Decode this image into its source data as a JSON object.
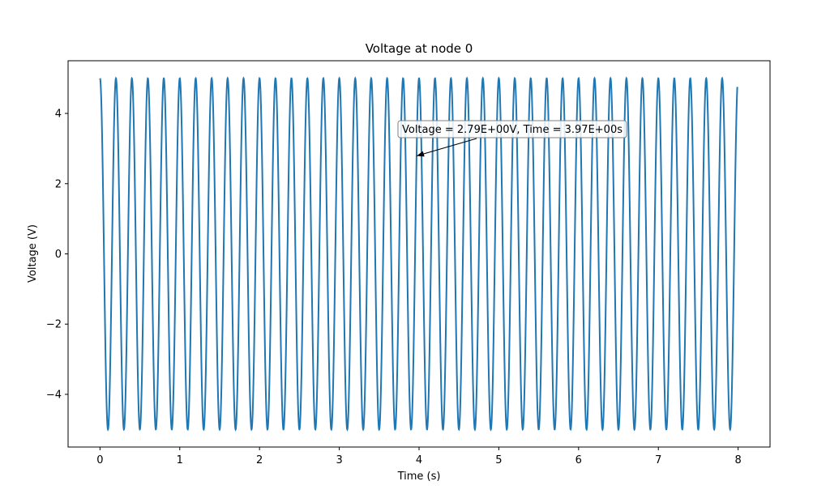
{
  "chart_data": {
    "type": "line",
    "title": "Voltage at node 0",
    "xlabel": "Time (s)",
    "ylabel": "Voltage (V)",
    "xlim": [
      -0.4,
      8.4
    ],
    "ylim": [
      -5.5,
      5.5
    ],
    "x_ticks": [
      0,
      1,
      2,
      3,
      4,
      5,
      6,
      7,
      8
    ],
    "y_ticks": [
      -4,
      -2,
      0,
      2,
      4
    ],
    "x_tick_labels": [
      "0",
      "1",
      "2",
      "3",
      "4",
      "5",
      "6",
      "7",
      "8"
    ],
    "y_tick_labels": [
      "−4",
      "−2",
      "0",
      "2",
      "4"
    ],
    "grid": false,
    "series": [
      {
        "color": "#1f77b4",
        "function": "cosine",
        "amplitude": 5,
        "frequency_hz": 5,
        "x_start": 0,
        "x_end": 7.99
      }
    ],
    "annotation": {
      "text": "Voltage = 2.79E+00V, Time = 3.97E+00s",
      "point": [
        3.97,
        2.79
      ]
    }
  }
}
